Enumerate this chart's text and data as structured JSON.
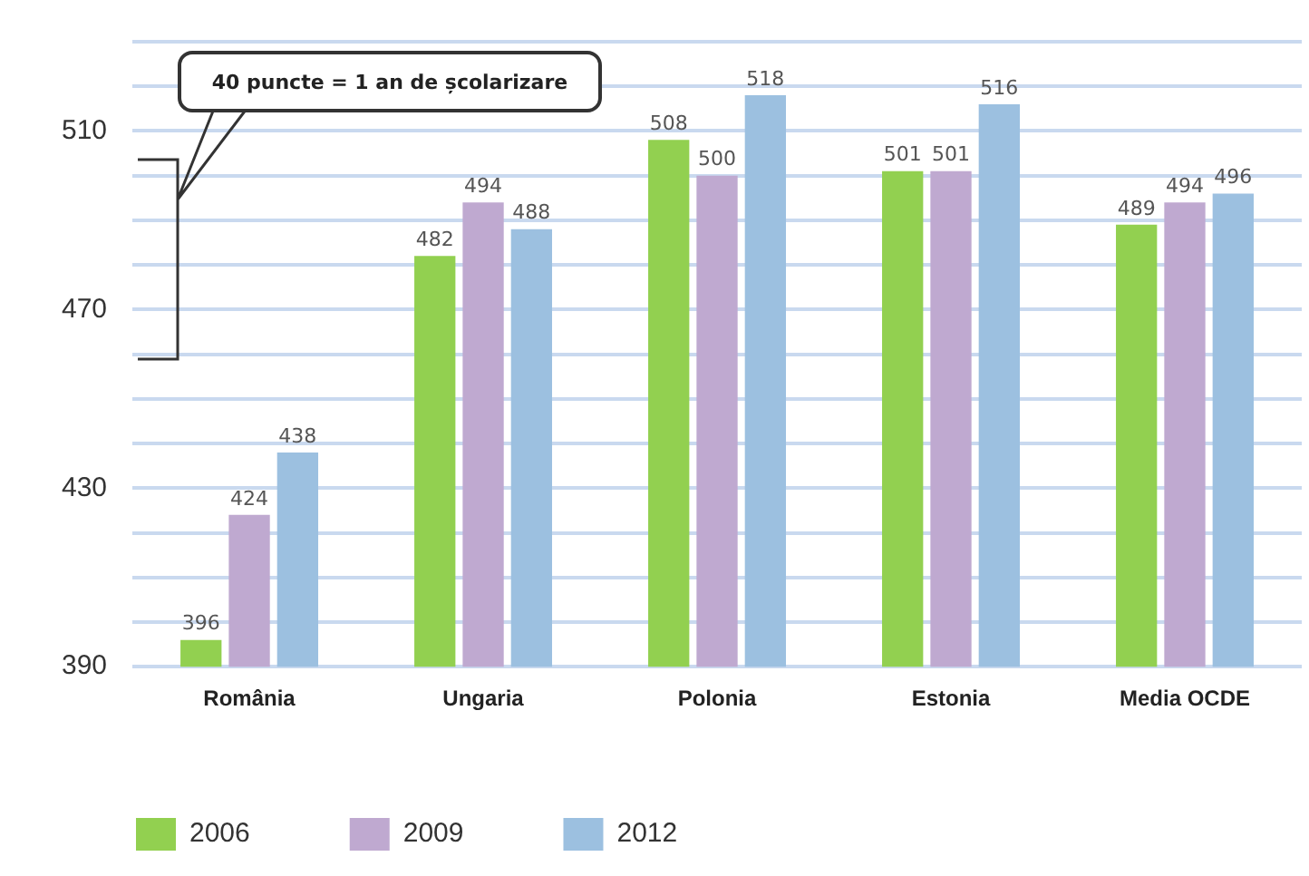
{
  "chart_data": {
    "type": "bar",
    "categories": [
      "România",
      "Ungaria",
      "Polonia",
      "Estonia",
      "Media OCDE"
    ],
    "series": [
      {
        "name": "2006",
        "color": "#92d050",
        "values": [
          396,
          482,
          508,
          501,
          489
        ]
      },
      {
        "name": "2009",
        "color": "#bfa9d0",
        "values": [
          424,
          494,
          500,
          501,
          494
        ]
      },
      {
        "name": "2012",
        "color": "#9cc0e0",
        "values": [
          438,
          488,
          518,
          516,
          496
        ]
      }
    ],
    "ylim": [
      390,
      530
    ],
    "yticks": [
      390,
      {
        "value": 400,
        "label": null
      },
      {
        "value": 410,
        "label": null
      },
      {
        "value": 420,
        "label": null
      },
      430,
      {
        "value": 440,
        "label": null
      },
      {
        "value": 450,
        "label": null
      },
      {
        "value": 460,
        "label": null
      },
      470,
      {
        "value": 480,
        "label": null
      },
      {
        "value": 490,
        "label": null
      },
      {
        "value": 500,
        "label": null
      },
      510,
      {
        "value": 520,
        "label": null
      },
      {
        "value": 530,
        "label": null
      }
    ],
    "grid": "y",
    "legend": "bottom left",
    "data_labels": true,
    "annotations": [
      "40 puncte = 1 an de școlarizare"
    ]
  }
}
